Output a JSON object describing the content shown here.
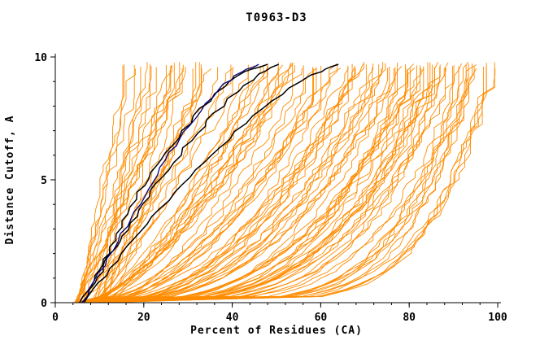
{
  "chart_data": {
    "type": "line",
    "title": "T0963-D3",
    "xlabel": "Percent of Residues (CA)",
    "ylabel": "Distance Cutoff, A",
    "xlim": [
      0,
      100
    ],
    "ylim": [
      0,
      10
    ],
    "x_ticks": [
      0,
      20,
      40,
      60,
      80,
      100
    ],
    "y_ticks": [
      0,
      5,
      10
    ],
    "x_minor_step": 4,
    "y_minor_step": 1,
    "grid": false,
    "legend": "none",
    "ensemble": {
      "description": "orange prediction GDT curves, monotone rising from bottom-left",
      "color": "#ff8c00",
      "count": 110,
      "stroke_width": 0.9,
      "start_x_range": [
        4,
        11
      ],
      "end_x_range": [
        16,
        100
      ],
      "y_top": 9.7,
      "seed": 1337
    },
    "highlight_series": [
      {
        "name": "model-black-1",
        "color": "#000000",
        "width": 1.5,
        "points": [
          [
            5.5,
            0
          ],
          [
            8,
            0.7
          ],
          [
            10,
            1.3
          ],
          [
            12,
            2
          ],
          [
            14,
            2.8
          ],
          [
            16,
            3.6
          ],
          [
            19,
            4.5
          ],
          [
            22,
            5.3
          ],
          [
            25,
            6.1
          ],
          [
            29,
            7
          ],
          [
            33,
            7.9
          ],
          [
            38,
            8.8
          ],
          [
            43,
            9.4
          ],
          [
            48,
            9.7
          ]
        ]
      },
      {
        "name": "model-black-2",
        "color": "#000000",
        "width": 1.5,
        "points": [
          [
            6,
            0
          ],
          [
            9,
            0.8
          ],
          [
            11,
            1.5
          ],
          [
            13,
            2.1
          ],
          [
            15,
            2.7
          ],
          [
            18,
            3.5
          ],
          [
            21,
            4.3
          ],
          [
            24,
            5.1
          ],
          [
            28,
            6
          ],
          [
            32,
            6.9
          ],
          [
            36,
            7.7
          ],
          [
            41,
            8.6
          ],
          [
            46,
            9.3
          ],
          [
            50.5,
            9.7
          ]
        ]
      },
      {
        "name": "model-navy",
        "color": "#000080",
        "width": 1.3,
        "points": [
          [
            6,
            0
          ],
          [
            9,
            0.9
          ],
          [
            12,
            1.8
          ],
          [
            15,
            2.8
          ],
          [
            18,
            3.7
          ],
          [
            21,
            4.6
          ],
          [
            24,
            5.5
          ],
          [
            27,
            6.4
          ],
          [
            30,
            7.2
          ],
          [
            34,
            8.1
          ],
          [
            38,
            8.9
          ],
          [
            42,
            9.4
          ],
          [
            46,
            9.7
          ]
        ]
      },
      {
        "name": "model-black-3",
        "color": "#000000",
        "width": 1.5,
        "points": [
          [
            6.5,
            0
          ],
          [
            10,
            0.8
          ],
          [
            14,
            1.7
          ],
          [
            18,
            2.6
          ],
          [
            22,
            3.5
          ],
          [
            27,
            4.5
          ],
          [
            32,
            5.4
          ],
          [
            37,
            6.3
          ],
          [
            43,
            7.3
          ],
          [
            49,
            8.2
          ],
          [
            55,
            9
          ],
          [
            60,
            9.4
          ],
          [
            64,
            9.7
          ]
        ]
      }
    ],
    "axis_color": "#000000",
    "background": "#ffffff"
  }
}
